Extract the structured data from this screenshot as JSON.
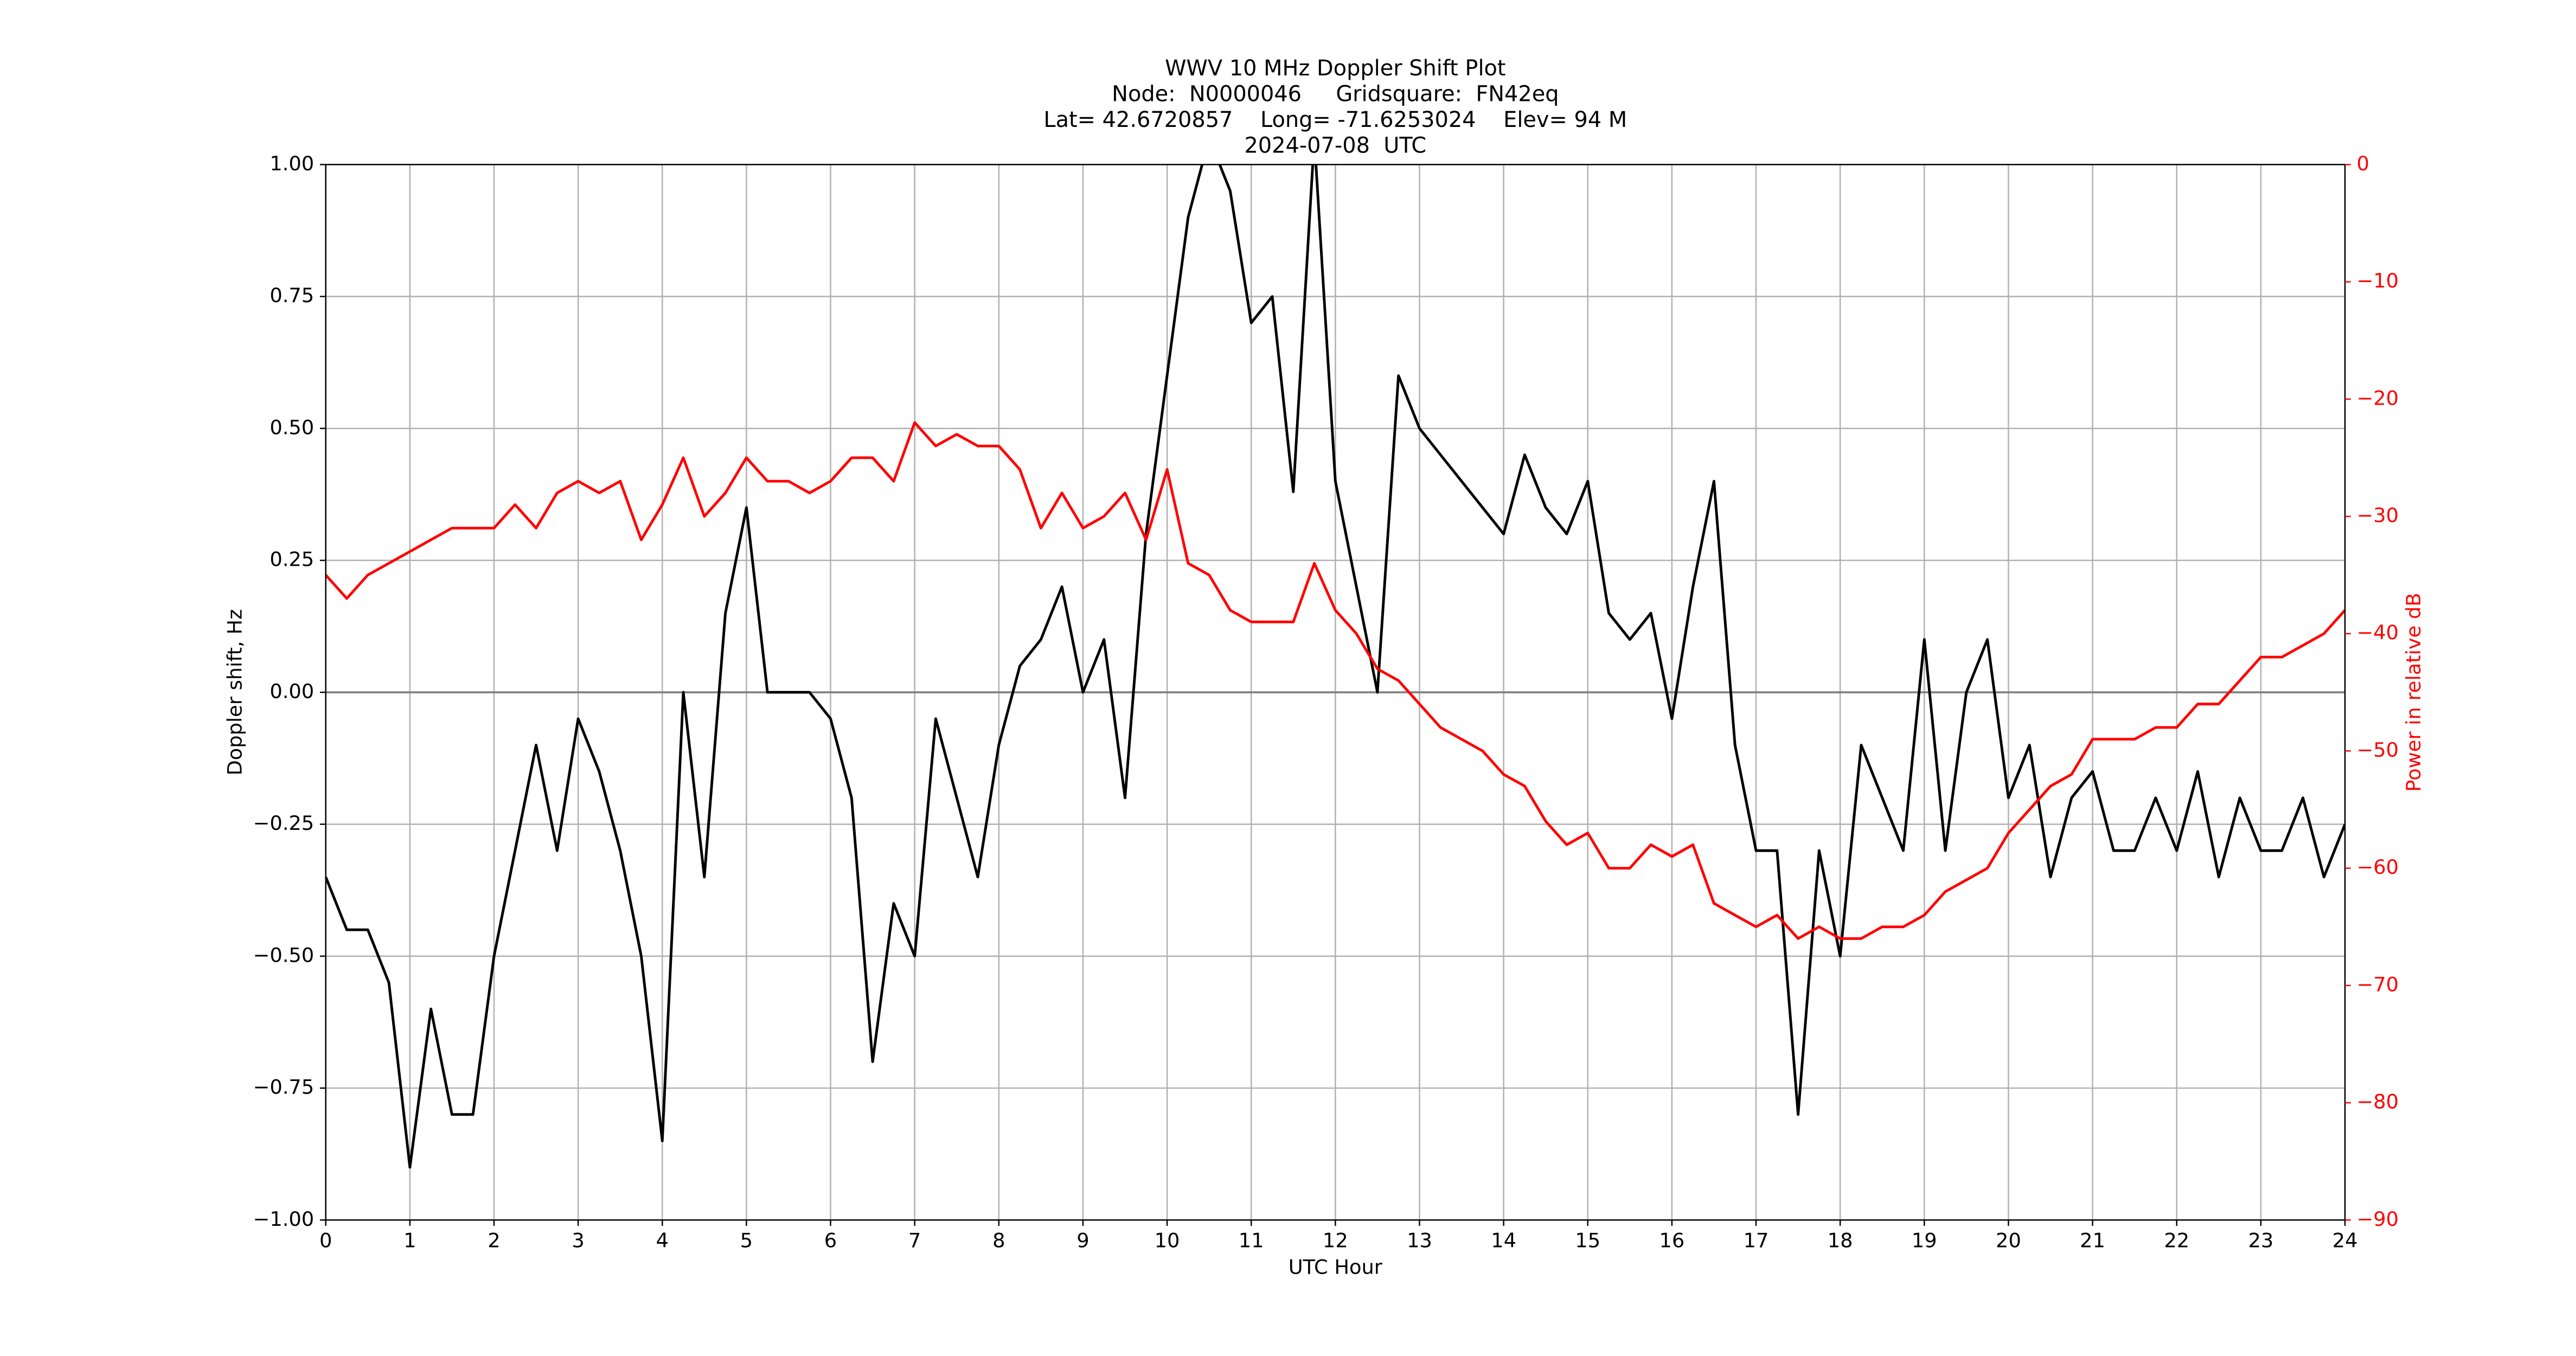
{
  "chart_data": {
    "type": "line",
    "title": [
      "WWV 10 MHz Doppler Shift Plot",
      "Node:  N0000046     Gridsquare:  FN42eq",
      "Lat= 42.6720857    Long= -71.6253024    Elev= 94 M",
      "2024-07-08  UTC"
    ],
    "x_label": "UTC Hour",
    "y_label": "Doppler shift, Hz",
    "y2_label": "Power in relative dB",
    "grid": true,
    "x": [
      0,
      0.25,
      0.5,
      0.75,
      1,
      1.25,
      1.5,
      1.75,
      2,
      2.25,
      2.5,
      2.75,
      3,
      3.25,
      3.5,
      3.75,
      4,
      4.25,
      4.5,
      4.75,
      5,
      5.25,
      5.5,
      5.75,
      6,
      6.25,
      6.5,
      6.75,
      7,
      7.25,
      7.5,
      7.75,
      8,
      8.25,
      8.5,
      8.75,
      9,
      9.25,
      9.5,
      9.75,
      10,
      10.25,
      10.5,
      10.75,
      11,
      11.25,
      11.5,
      11.75,
      12,
      12.25,
      12.5,
      12.75,
      13,
      13.25,
      13.5,
      13.75,
      14,
      14.25,
      14.5,
      14.75,
      15,
      15.25,
      15.5,
      15.75,
      16,
      16.25,
      16.5,
      16.75,
      17,
      17.25,
      17.5,
      17.75,
      18,
      18.25,
      18.5,
      18.75,
      19,
      19.25,
      19.5,
      19.75,
      20,
      20.25,
      20.5,
      20.75,
      21,
      21.25,
      21.5,
      21.75,
      22,
      22.25,
      22.5,
      22.75,
      23,
      23.25,
      23.5,
      23.75,
      24
    ],
    "series": [
      {
        "color": "#000000",
        "axis": "y",
        "values": [
          -0.35,
          -0.45,
          -0.45,
          -0.55,
          -0.9,
          -0.6,
          -0.8,
          -0.8,
          -0.5,
          -0.3,
          -0.1,
          -0.3,
          -0.05,
          -0.15,
          -0.3,
          -0.5,
          -0.85,
          0.0,
          -0.35,
          0.15,
          0.35,
          0.0,
          0.0,
          0.0,
          -0.05,
          -0.2,
          -0.7,
          -0.4,
          -0.5,
          -0.05,
          -0.2,
          -0.35,
          -0.1,
          0.05,
          0.1,
          0.2,
          0.0,
          0.1,
          -0.2,
          0.3,
          0.6,
          0.9,
          1.05,
          0.95,
          0.7,
          0.75,
          0.38,
          1.05,
          0.4,
          0.2,
          0.0,
          0.6,
          0.5,
          0.45,
          0.4,
          0.35,
          0.3,
          0.45,
          0.35,
          0.3,
          0.4,
          0.15,
          0.1,
          0.15,
          -0.05,
          0.2,
          0.4,
          -0.1,
          -0.3,
          -0.3,
          -0.8,
          -0.3,
          -0.5,
          -0.1,
          -0.2,
          -0.3,
          0.1,
          -0.3,
          0.0,
          0.1,
          -0.2,
          -0.1,
          -0.35,
          -0.2,
          -0.15,
          -0.3,
          -0.3,
          -0.2,
          -0.3,
          -0.15,
          -0.35,
          -0.2,
          -0.3,
          -0.3,
          -0.2,
          -0.35,
          -0.25
        ]
      },
      {
        "color": "#ff0000",
        "axis": "y2",
        "values": [
          -35,
          -37,
          -35,
          -34,
          -33,
          -32,
          -31,
          -31,
          -31,
          -29,
          -31,
          -28,
          -27,
          -28,
          -27,
          -32,
          -29,
          -25,
          -30,
          -28,
          -25,
          -27,
          -27,
          -28,
          -27,
          -25,
          -25,
          -27,
          -22,
          -24,
          -23,
          -24,
          -24,
          -26,
          -31,
          -28,
          -31,
          -30,
          -28,
          -32,
          -26,
          -34,
          -35,
          -38,
          -39,
          -39,
          -39,
          -34,
          -38,
          -40,
          -43,
          -44,
          -46,
          -48,
          -49,
          -50,
          -52,
          -53,
          -56,
          -58,
          -57,
          -60,
          -60,
          -58,
          -59,
          -58,
          -63,
          -64,
          -65,
          -64,
          -66,
          -65,
          -66,
          -66,
          -65,
          -65,
          -64,
          -62,
          -61,
          -60,
          -57,
          -55,
          -53,
          -52,
          -49,
          -49,
          -49,
          -48,
          -48,
          -46,
          -46,
          -44,
          -42,
          -42,
          -41,
          -40,
          -38
        ]
      }
    ],
    "xlim": [
      0,
      24
    ],
    "xticks": [
      0,
      1,
      2,
      3,
      4,
      5,
      6,
      7,
      8,
      9,
      10,
      11,
      12,
      13,
      14,
      15,
      16,
      17,
      18,
      19,
      20,
      21,
      22,
      23,
      24
    ],
    "ylim": [
      -1,
      1
    ],
    "yticks": [
      {
        "value": -1,
        "label": "−1.00"
      },
      {
        "value": -0.75,
        "label": "−0.75"
      },
      {
        "value": -0.5,
        "label": "−0.50"
      },
      {
        "value": -0.25,
        "label": "−0.25"
      },
      {
        "value": 0,
        "label": "0.00"
      },
      {
        "value": 0.25,
        "label": "0.25"
      },
      {
        "value": 0.5,
        "label": "0.50"
      },
      {
        "value": 0.75,
        "label": "0.75"
      },
      {
        "value": 1,
        "label": "1.00"
      }
    ],
    "y2lim": [
      -90,
      0
    ],
    "y2ticks": [
      {
        "value": -90,
        "label": "−90"
      },
      {
        "value": -80,
        "label": "−80"
      },
      {
        "value": -70,
        "label": "−70"
      },
      {
        "value": -60,
        "label": "−60"
      },
      {
        "value": -50,
        "label": "−50"
      },
      {
        "value": -40,
        "label": "−40"
      },
      {
        "value": -30,
        "label": "−30"
      },
      {
        "value": -20,
        "label": "−20"
      },
      {
        "value": -10,
        "label": "−10"
      },
      0
    ],
    "y2_color": "#ff0000"
  }
}
